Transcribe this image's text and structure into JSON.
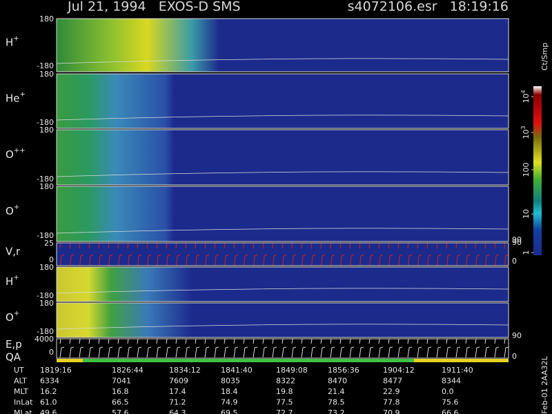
{
  "header": {
    "left": "Jul 21, 1994   EXOS-D SMS",
    "right": "s4072106.esr   18:19:16"
  },
  "panels": [
    {
      "label": "H",
      "sup": "+",
      "ticks": [
        "180",
        "-180"
      ]
    },
    {
      "label": "He",
      "sup": "+",
      "ticks": [
        "180",
        "-180"
      ]
    },
    {
      "label": "O",
      "sup": "++",
      "ticks": [
        "180",
        "-180"
      ]
    },
    {
      "label": "O",
      "sup": "+",
      "ticks": [
        "180",
        "-180"
      ],
      "right_ticks": [
        "90"
      ]
    },
    {
      "label": "V,r",
      "ticks": [
        "25",
        "0"
      ],
      "right_ticks": [
        "90",
        "0"
      ]
    },
    {
      "label": "H",
      "sup": "+",
      "ticks": [
        "180",
        "-180"
      ]
    },
    {
      "label": "O",
      "sup": "+",
      "ticks": [
        "180",
        "-180"
      ],
      "right_ticks": [
        "90"
      ]
    },
    {
      "label": "E,p",
      "label2": "QA",
      "ticks": [
        "4000",
        "0"
      ],
      "right_ticks": [
        "0"
      ]
    }
  ],
  "colorbar": {
    "title": "Ct/Smp",
    "ticks": [
      {
        "base": "10",
        "sup": "4"
      },
      {
        "base": "10",
        "sup": "3"
      },
      {
        "base": "100"
      },
      {
        "base": "10"
      },
      {
        "base": "1"
      }
    ]
  },
  "footer": {
    "rows": [
      {
        "label": "UT",
        "values": [
          "1819:16",
          "1826:44",
          "1834:12",
          "1841:40",
          "1849:08",
          "1856:36",
          "1904:12",
          "1911:40"
        ]
      },
      {
        "label": "ALT",
        "values": [
          "6334",
          "7041",
          "7609",
          "8035",
          "8322",
          "8470",
          "8477",
          "8344"
        ]
      },
      {
        "label": "MLT",
        "values": [
          "16.2",
          "16.8",
          "17.4",
          "18.4",
          "19.8",
          "21.4",
          "22.9",
          "0.0"
        ]
      },
      {
        "label": "InLat",
        "values": [
          "61.0",
          "66.5",
          "71.2",
          "74.9",
          "77.5",
          "78.5",
          "77.8",
          "75.6"
        ]
      },
      {
        "label": "MLat",
        "values": [
          "49.6",
          "57.6",
          "64.3",
          "69.5",
          "72.7",
          "73.2",
          "70.9",
          "66.6"
        ]
      }
    ],
    "side_note": "Feb-01  2AA32L"
  }
}
